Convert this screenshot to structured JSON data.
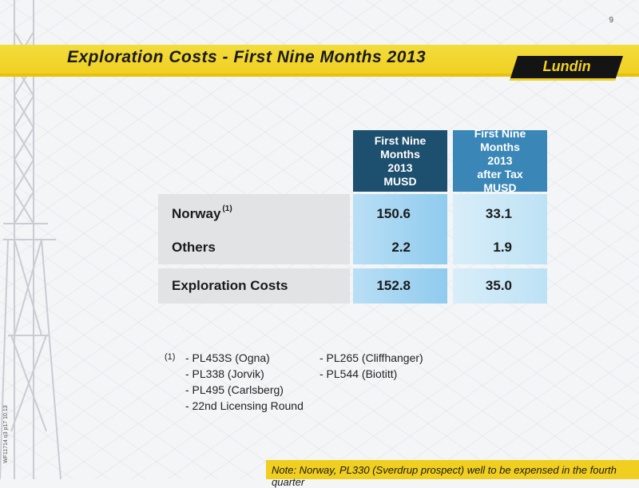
{
  "page_number": "9",
  "slide": {
    "title": "Exploration Costs - First Nine Months 2013",
    "logo_text": "Lundin"
  },
  "table": {
    "columns": [
      {
        "lines": [
          "First Nine Months",
          "2013",
          "MUSD"
        ]
      },
      {
        "lines": [
          "First Nine Months",
          "2013",
          "after Tax",
          "MUSD"
        ]
      }
    ],
    "rows": [
      {
        "label": "Norway",
        "superscript": "(1)",
        "values": [
          "150.6",
          "33.1"
        ]
      },
      {
        "label": "Others",
        "superscript": "",
        "values": [
          "2.2",
          "1.9"
        ]
      },
      {
        "label": "Exploration Costs",
        "superscript": "",
        "values": [
          "152.8",
          "35.0"
        ]
      }
    ]
  },
  "footnote": {
    "marker": "(1)",
    "left_items": [
      "- PL453S (Ogna)",
      "- PL338 (Jorvik)",
      "- PL495 (Carlsberg)",
      "- 22nd Licensing Round"
    ],
    "right_items": [
      "- PL265 (Cliffhanger)",
      "- PL544 (Biotitt)"
    ]
  },
  "side_code": "WF11714 q3 p17 10.13",
  "note": "Note: Norway, PL330 (Sverdrup prospect) well to be expensed in the fourth quarter",
  "colors": {
    "accent_yellow": "#f0cf20",
    "header_dark_blue": "#1d4f6f",
    "header_mid_blue": "#3a87b7"
  }
}
